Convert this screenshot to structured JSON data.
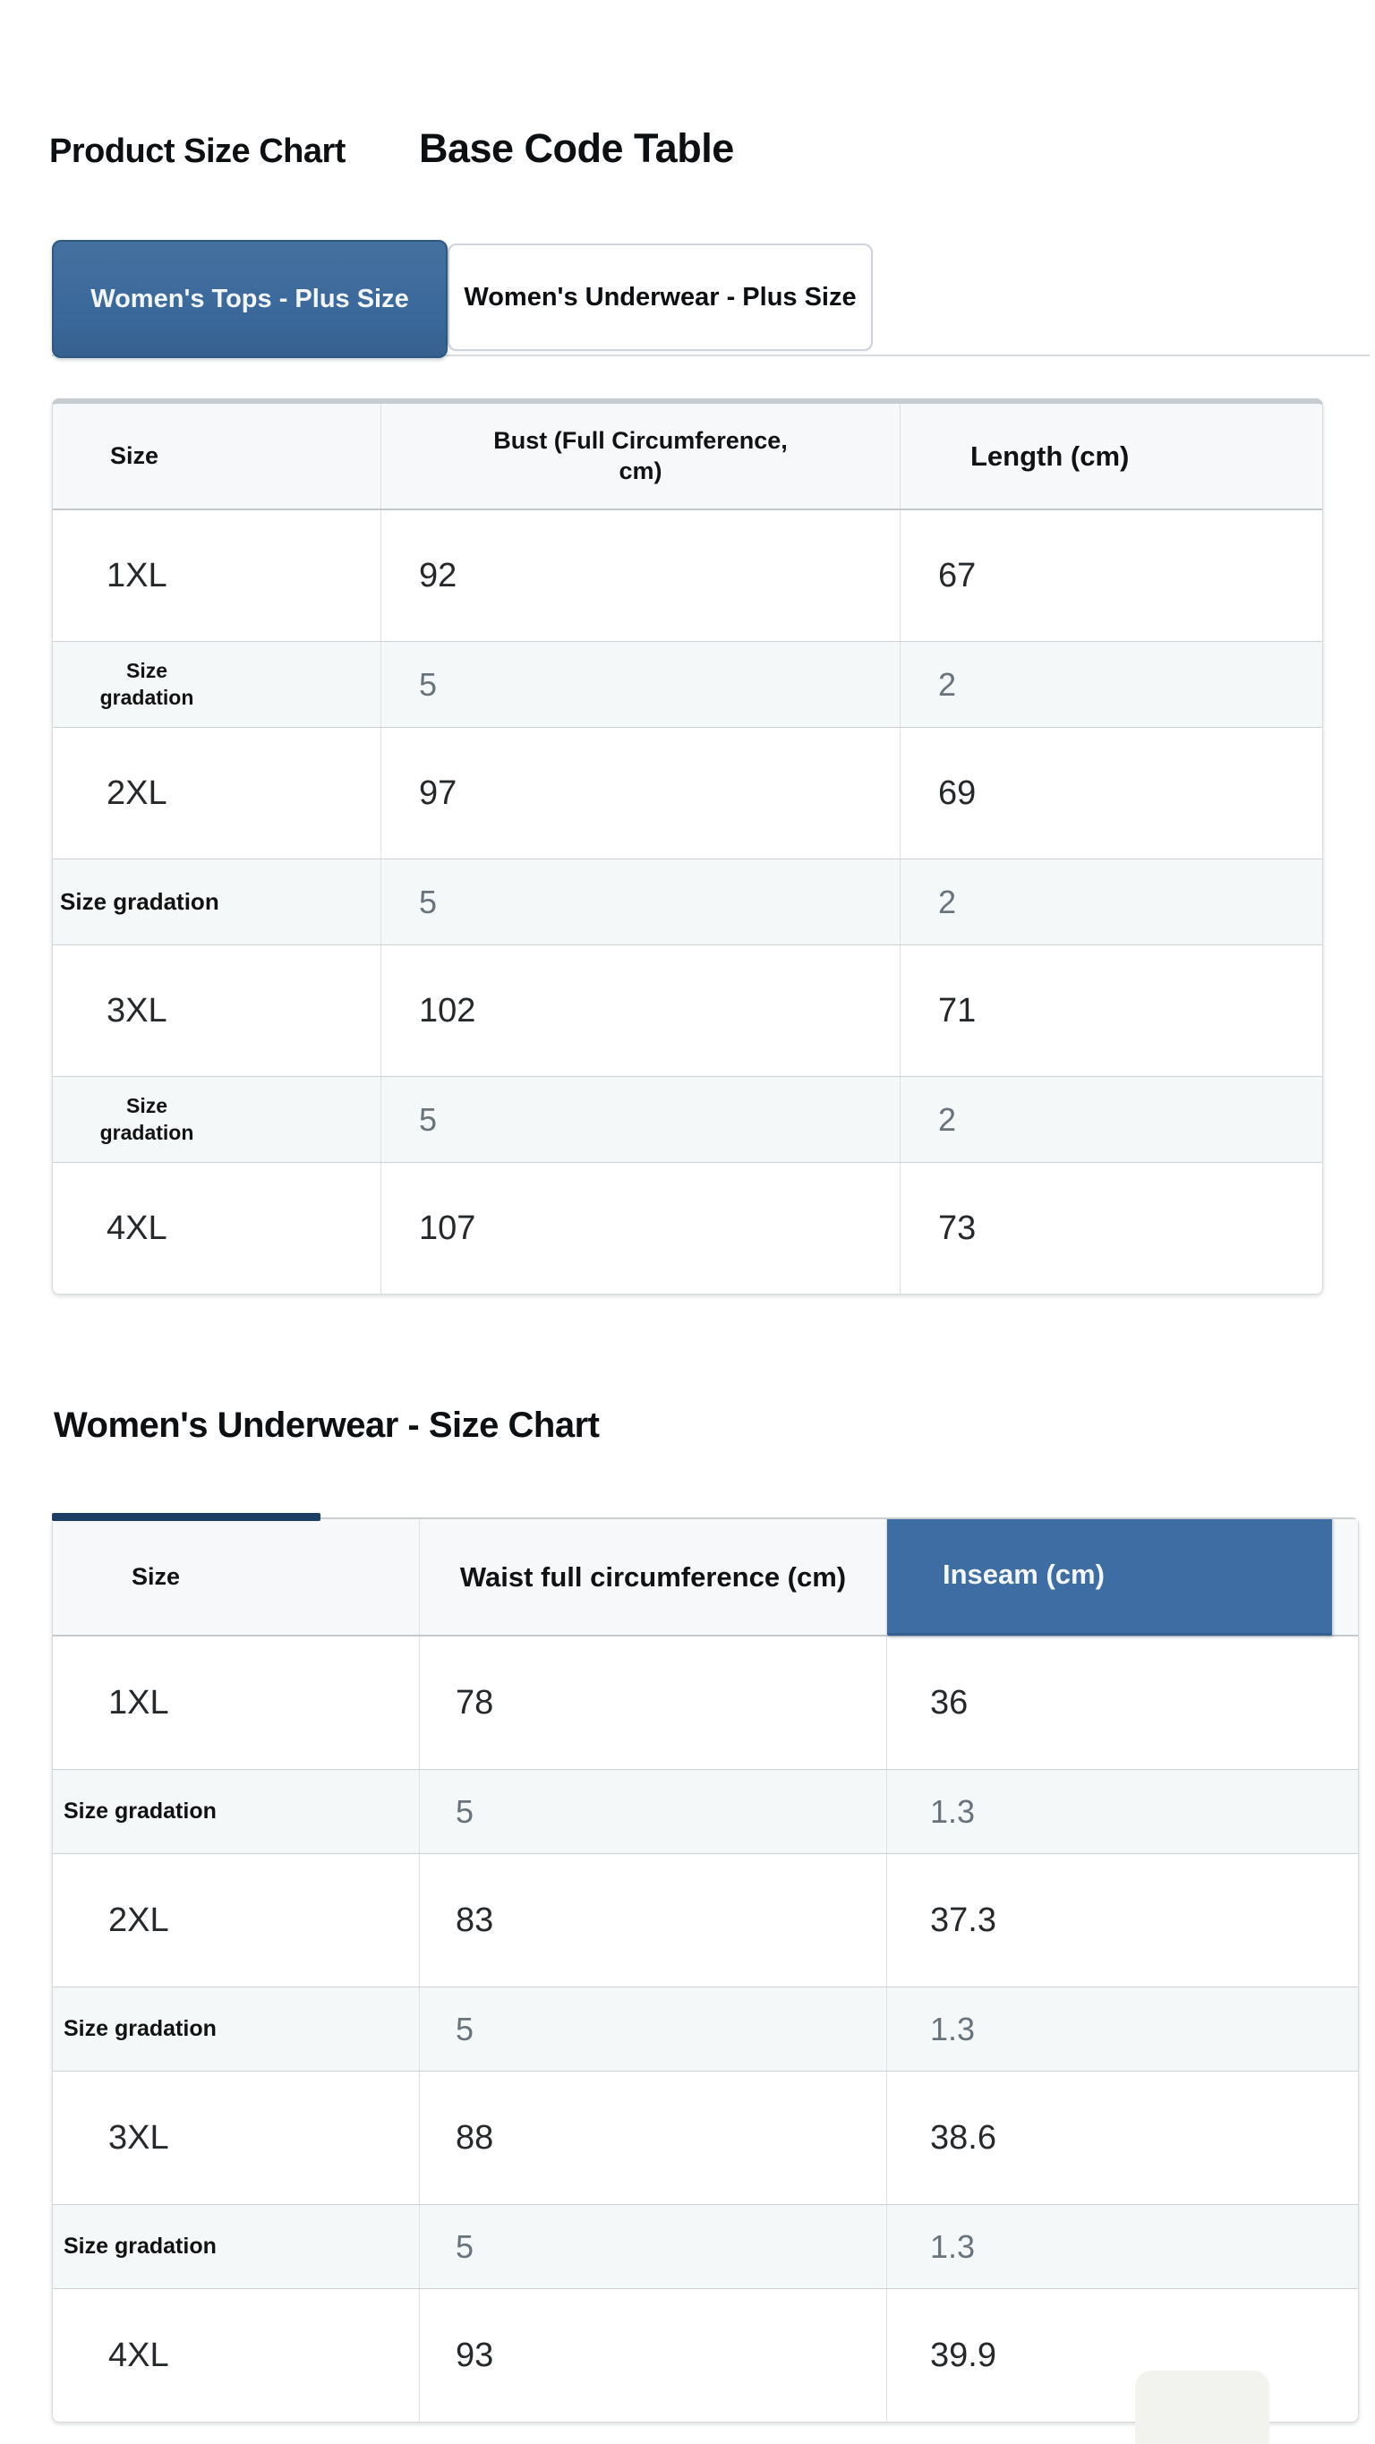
{
  "header": {
    "title_primary": "Product Size Chart",
    "title_secondary": "Base Code Table"
  },
  "tabs": {
    "tops": {
      "label": "Women's Tops - Plus Size",
      "active": true
    },
    "underwear": {
      "label": "Women's Underwear - Plus Size",
      "active": false
    }
  },
  "tops_table": {
    "headers": {
      "size": "Size",
      "bust": "Bust (Full Circumference, cm)",
      "length": "Length (cm)"
    },
    "rows": [
      [
        "1XL",
        "92",
        "67"
      ],
      [
        "Size gradation",
        "5",
        "2"
      ],
      [
        "2XL",
        "97",
        "69"
      ],
      [
        "Size gradation",
        "5",
        "2"
      ],
      [
        "3XL",
        "102",
        "71"
      ],
      [
        "Size gradation",
        "5",
        "2"
      ],
      [
        "4XL",
        "107",
        "73"
      ]
    ]
  },
  "underwear_section": {
    "title": "Women's Underwear - Size Chart"
  },
  "underwear_table": {
    "headers": {
      "size": "Size",
      "waist": "Waist full circumference (cm)",
      "inseam": "Inseam (cm)"
    },
    "rows": [
      [
        "1XL",
        "78",
        "36"
      ],
      [
        "Size gradation",
        "5",
        "1.3"
      ],
      [
        "2XL",
        "83",
        "37.3"
      ],
      [
        "Size gradation",
        "5",
        "1.3"
      ],
      [
        "3XL",
        "88",
        "38.6"
      ],
      [
        "Size gradation",
        "5",
        "1.3"
      ],
      [
        "4XL",
        "93",
        "39.9"
      ]
    ]
  },
  "colors": {
    "accent_blue": "#3e6da3",
    "tab_blue": "#3a679a",
    "navy_indicator": "#1d3e62",
    "gradation_row_bg": "#f5f8f9",
    "gradation_value_text": "#68737b"
  }
}
